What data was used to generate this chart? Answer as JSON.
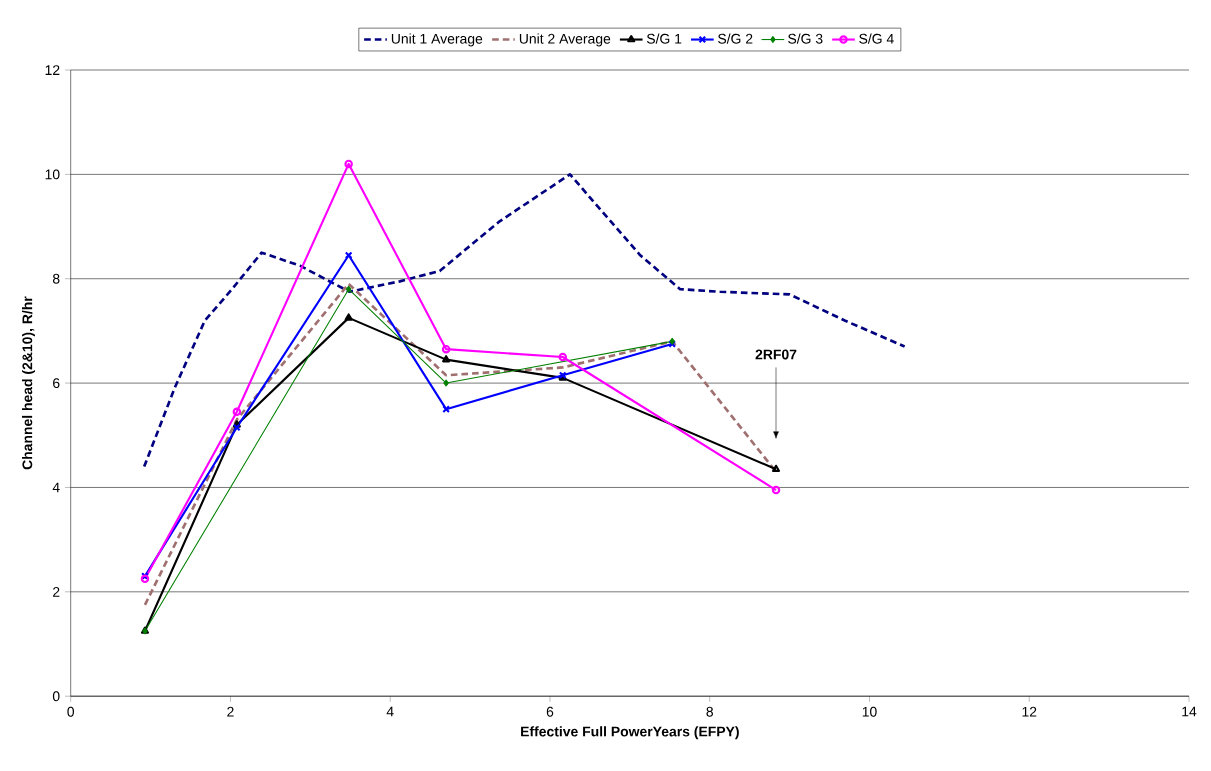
{
  "chart_data": {
    "type": "line",
    "xlabel": "Effective Full PowerYears (EFPY)",
    "ylabel": "Channel head (2&10), R/hr",
    "xlim": [
      0,
      14
    ],
    "ylim": [
      0,
      12
    ],
    "xticks": [
      0,
      2,
      4,
      6,
      8,
      10,
      12,
      14
    ],
    "yticks": [
      0,
      2,
      4,
      6,
      8,
      10,
      12
    ],
    "grid": "y",
    "legend": "top",
    "series": [
      {
        "name": "Unit 1 Average",
        "color": "#000080",
        "line_style": "dashed",
        "marker": "none",
        "x": [
          0.92,
          1.3,
          1.68,
          2.02,
          2.39,
          2.87,
          3.49,
          4.12,
          4.62,
          5.37,
          6.25,
          7.13,
          7.63,
          8.13,
          9.0,
          9.69,
          10.44
        ],
        "values": [
          4.4,
          5.9,
          7.2,
          7.8,
          8.5,
          8.25,
          7.75,
          7.95,
          8.15,
          9.1,
          10.0,
          8.45,
          7.8,
          7.75,
          7.7,
          7.2,
          6.7
        ]
      },
      {
        "name": "Unit 2 Average",
        "color": "#a07070",
        "line_style": "dashed",
        "marker": "none",
        "x": [
          0.93,
          2.08,
          3.48,
          4.7,
          6.16,
          7.53,
          8.83
        ],
        "values": [
          1.75,
          5.3,
          7.9,
          6.15,
          6.3,
          6.8,
          4.3
        ]
      },
      {
        "name": "S/G 1",
        "color": "#000000",
        "line_style": "solid",
        "marker": "triangle",
        "x": [
          0.93,
          2.08,
          3.48,
          4.7,
          6.16,
          8.83
        ],
        "values": [
          1.25,
          5.2,
          7.25,
          6.45,
          6.1,
          4.35
        ]
      },
      {
        "name": "S/G 2",
        "color": "#0000ff",
        "line_style": "solid",
        "marker": "cross",
        "x": [
          0.93,
          2.08,
          3.48,
          4.7,
          6.16,
          7.53
        ],
        "values": [
          2.3,
          5.15,
          8.45,
          5.5,
          6.15,
          6.75
        ]
      },
      {
        "name": "S/G 3",
        "color": "#008000",
        "line_style": "solid",
        "marker": "diamond",
        "x": [
          0.93,
          3.48,
          4.7,
          7.53
        ],
        "values": [
          1.25,
          7.8,
          6.0,
          6.8
        ]
      },
      {
        "name": "S/G 4",
        "color": "#ff00ff",
        "line_style": "solid",
        "marker": "circle",
        "x": [
          0.93,
          2.08,
          3.48,
          4.7,
          6.16,
          8.83
        ],
        "values": [
          2.25,
          5.45,
          10.2,
          6.65,
          6.5,
          3.95
        ]
      }
    ],
    "annotations": [
      "2RF07"
    ]
  }
}
